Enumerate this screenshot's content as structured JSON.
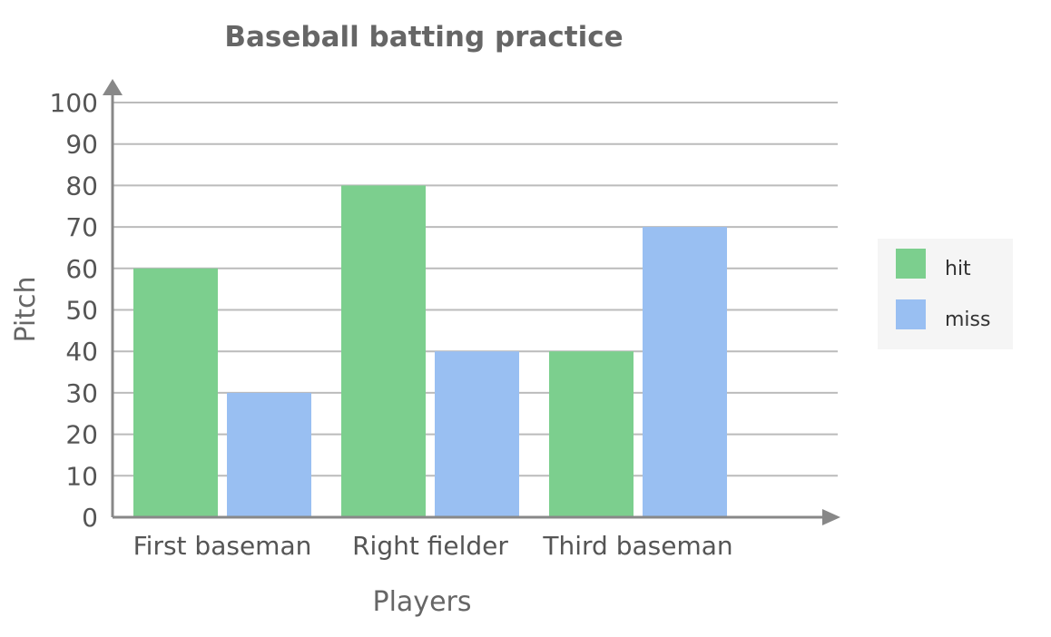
{
  "chart_data": {
    "type": "bar",
    "title": "Baseball batting practice",
    "xlabel": "Players",
    "ylabel": "Pitch",
    "categories": [
      "First baseman",
      "Right fielder",
      "Third baseman"
    ],
    "series": [
      {
        "name": "hit",
        "values": [
          60,
          80,
          40
        ],
        "color": "#7ccf8e"
      },
      {
        "name": "miss",
        "values": [
          30,
          40,
          70
        ],
        "color": "#99bff2"
      }
    ],
    "ylim": [
      0,
      100
    ],
    "yticks": [
      0,
      10,
      20,
      30,
      40,
      50,
      60,
      70,
      80,
      90,
      100
    ],
    "grid": true,
    "legend_position": "right"
  },
  "colors": {
    "axis": "#888888",
    "grid": "#bbbbbb",
    "legend_bg": "#f5f5f5"
  }
}
